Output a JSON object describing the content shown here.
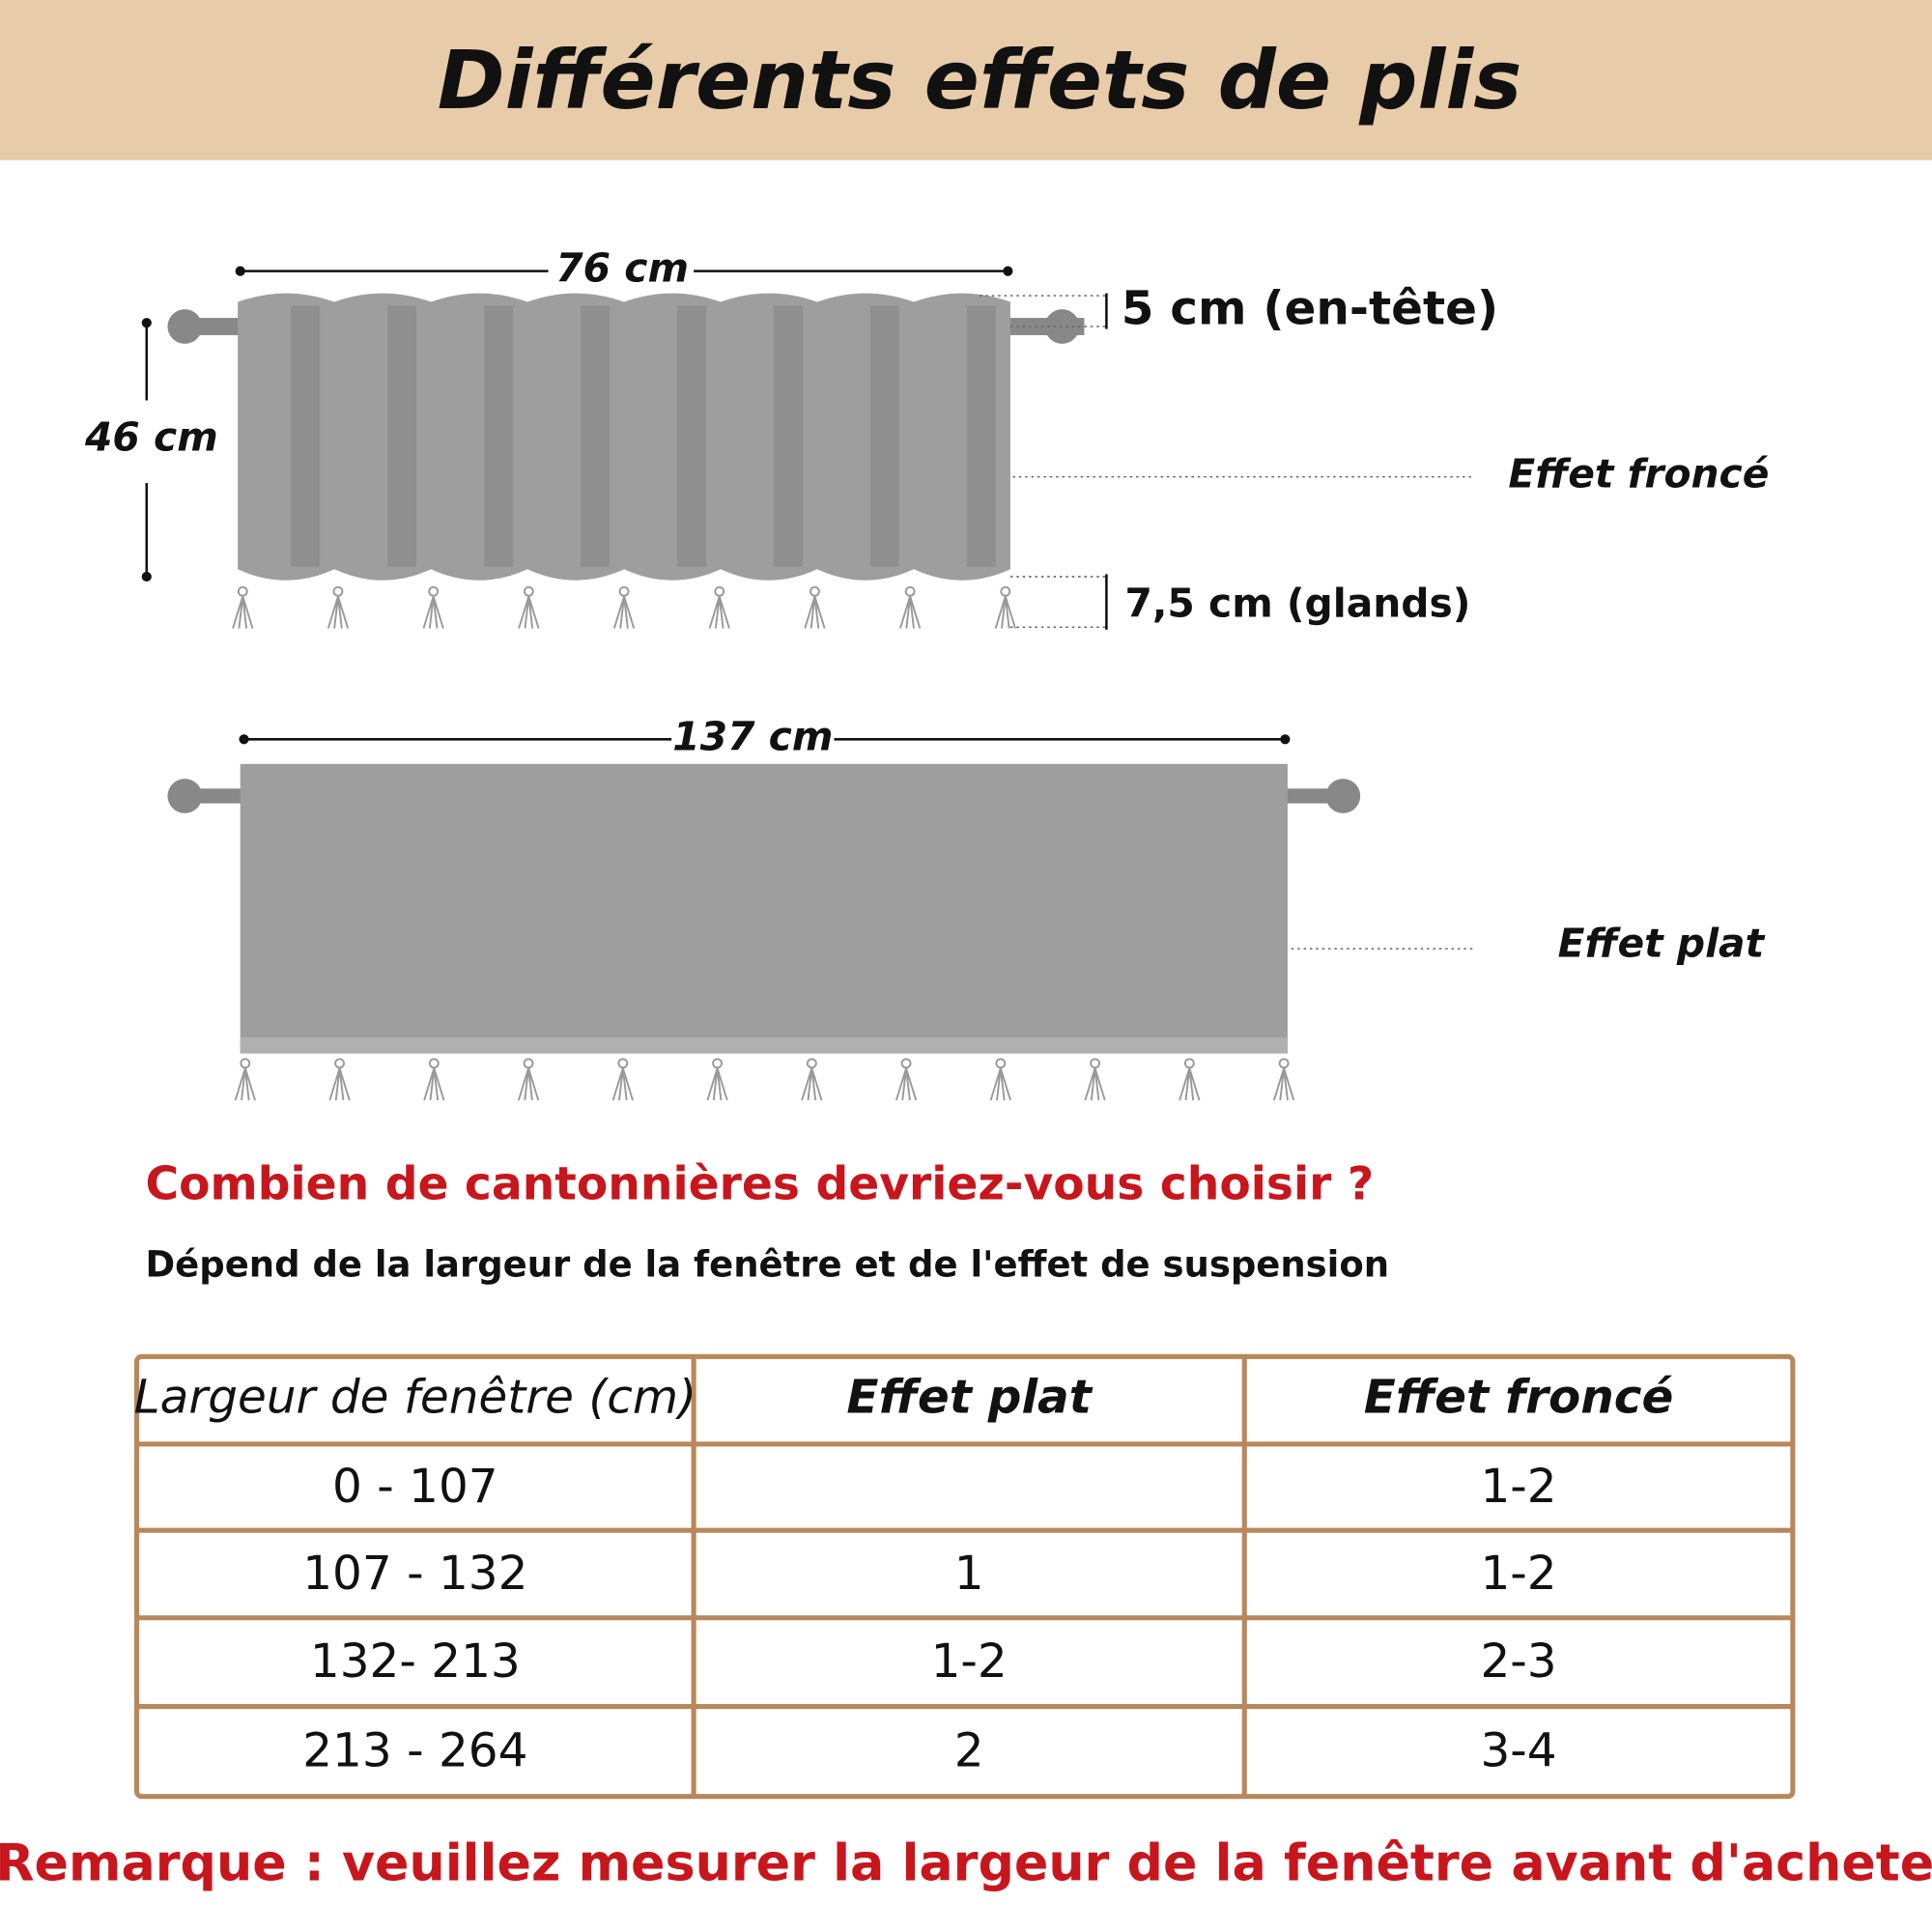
{
  "header": {
    "title": "Différents effets de plis"
  },
  "diagram": {
    "ruffled": {
      "width": "76 cm",
      "height": "46 cm",
      "header": "5 cm (en-tête)",
      "tassels": "7,5 cm (glands)",
      "label": "Effet froncé"
    },
    "flat": {
      "width": "137 cm",
      "label": "Effet plat"
    }
  },
  "question": "Combien de cantonnières devriez-vous choisir ?",
  "subtitle": "Dépend de la largeur de la fenêtre et de l'effet de suspension",
  "table": {
    "headers": [
      "Largeur de fenêtre (cm)",
      "Effet plat",
      "Effet froncé"
    ],
    "rows": [
      [
        "0 - 107",
        null,
        "1-2"
      ],
      [
        "107 - 132",
        "1",
        "1-2"
      ],
      [
        "132- 213",
        "1-2",
        "2-3"
      ],
      [
        "213 - 264",
        "2",
        "3-4"
      ]
    ]
  },
  "remark": "Remarque : veuillez mesurer la largeur de la fenêtre avant d'acheter."
}
